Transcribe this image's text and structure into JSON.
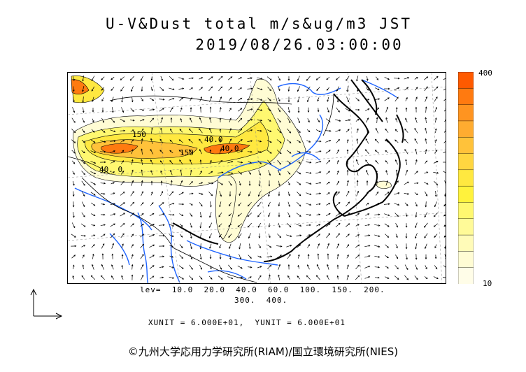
{
  "title_line1": "U-V&Dust total m/s&ug/m3 JST",
  "title_line2": "2019/08/26.03:00:00",
  "colorbar": {
    "max_label": "400",
    "min_label": "10",
    "colors": [
      "#ff5a00",
      "#ff7a10",
      "#ff9420",
      "#ffac30",
      "#ffc23a",
      "#ffd640",
      "#ffe840",
      "#fff23c",
      "#fff870",
      "#fffa98",
      "#fffbb8",
      "#fffcd4",
      "#fffde8"
    ]
  },
  "contour_labels": [
    "150",
    "40.0",
    "150",
    "40.0",
    "40. 0"
  ],
  "levels_line1": "lev=  10.0  20.0  40.0  60.0  100.  150.  200.",
  "levels_line2": "300.  400.",
  "units_line": "XUNIT = 6.000E+01,  YUNIT = 6.000E+01",
  "copyright": "©九州大学応用力学研究所(RIAM)/国立環境研究所(NIES)"
}
